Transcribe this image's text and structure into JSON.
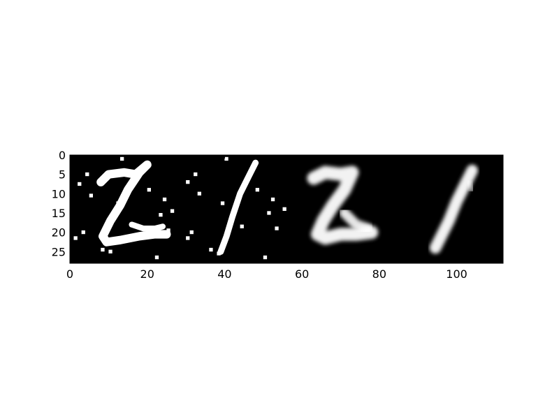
{
  "chart_data": {
    "type": "heatmap",
    "colormap": "gray",
    "background_color": "#000000",
    "foreground_color": "#ffffff",
    "xlim": [
      0,
      112
    ],
    "ylim": [
      28,
      0
    ],
    "xticks": [
      0,
      20,
      40,
      60,
      80,
      100
    ],
    "yticks": [
      0,
      5,
      10,
      15,
      20,
      25
    ],
    "xtick_labels": [
      "0",
      "20",
      "40",
      "60",
      "80",
      "100"
    ],
    "ytick_labels": [
      "0",
      "5",
      "10",
      "15",
      "20",
      "25"
    ],
    "grid": false,
    "panels": [
      {
        "name": "",
        "content": "noisy digit 2",
        "x_range": [
          0,
          28
        ]
      },
      {
        "name": "",
        "content": "noisy digit 1",
        "x_range": [
          28,
          56
        ]
      },
      {
        "name": "",
        "content": "denoised digit 2",
        "x_range": [
          56,
          84
        ]
      },
      {
        "name": "",
        "content": "denoised digit 1",
        "x_range": [
          84,
          112
        ]
      }
    ],
    "noise_points": [
      [
        1,
        21
      ],
      [
        2,
        7
      ],
      [
        4,
        4.5
      ],
      [
        5,
        10
      ],
      [
        3,
        19.5
      ],
      [
        13,
        0.5
      ],
      [
        12,
        12
      ],
      [
        16,
        17.5
      ],
      [
        20,
        8.5
      ],
      [
        24,
        11
      ],
      [
        26,
        14
      ],
      [
        23,
        15
      ],
      [
        25,
        19
      ],
      [
        8,
        24
      ],
      [
        10,
        24.5
      ],
      [
        22,
        26
      ],
      [
        30,
        21
      ],
      [
        31,
        19.5
      ],
      [
        30,
        6.5
      ],
      [
        32,
        4.5
      ],
      [
        33,
        9.5
      ],
      [
        40,
        0.5
      ],
      [
        39,
        12
      ],
      [
        44,
        18
      ],
      [
        48,
        8.5
      ],
      [
        52,
        11
      ],
      [
        55,
        13.5
      ],
      [
        51,
        14.5
      ],
      [
        53,
        18.5
      ],
      [
        36,
        24
      ],
      [
        38,
        25
      ],
      [
        50,
        26
      ]
    ],
    "strokes": [
      {
        "panel": "noisy-2",
        "width": 2.2,
        "opacity": 1,
        "blur": false,
        "points": [
          [
            8,
            7
          ],
          [
            10,
            5
          ],
          [
            14,
            4.5
          ],
          [
            17,
            5
          ],
          [
            20,
            2.5
          ],
          [
            18,
            4.5
          ],
          [
            15,
            9
          ],
          [
            13,
            13
          ],
          [
            10.5,
            17
          ],
          [
            8.5,
            21
          ],
          [
            9.5,
            22.5
          ],
          [
            13,
            22
          ],
          [
            18,
            21
          ],
          [
            22,
            20.5
          ],
          [
            25,
            20.5
          ]
        ]
      },
      {
        "panel": "noisy-2",
        "width": 1.5,
        "opacity": 1,
        "blur": false,
        "points": [
          [
            16,
            18
          ],
          [
            19,
            19
          ],
          [
            22,
            19
          ],
          [
            24,
            18.5
          ]
        ]
      },
      {
        "panel": "noisy-1",
        "width": 1.6,
        "opacity": 1,
        "blur": false,
        "points": [
          [
            48,
            2
          ],
          [
            46,
            6
          ],
          [
            44,
            10
          ],
          [
            42,
            16
          ],
          [
            40.5,
            21
          ],
          [
            39,
            25
          ]
        ]
      },
      {
        "panel": "denoised-2",
        "width": 3.4,
        "opacity": 0.95,
        "blur": true,
        "points": [
          [
            63,
            6
          ],
          [
            66,
            4.5
          ],
          [
            70,
            5
          ],
          [
            73,
            4.5
          ],
          [
            71,
            9
          ],
          [
            68,
            13
          ],
          [
            65.5,
            17
          ],
          [
            64,
            20.5
          ],
          [
            66,
            21.5
          ],
          [
            70,
            20.5
          ],
          [
            74,
            20.5
          ],
          [
            78,
            20
          ]
        ]
      },
      {
        "panel": "denoised-2",
        "width": 2.6,
        "opacity": 0.9,
        "blur": true,
        "points": [
          [
            71,
            15
          ],
          [
            74,
            18
          ],
          [
            77,
            19
          ]
        ]
      },
      {
        "panel": "denoised-1",
        "width": 3.0,
        "opacity": 0.95,
        "blur": true,
        "points": [
          [
            104,
            4
          ],
          [
            102,
            8
          ],
          [
            100,
            12
          ],
          [
            98,
            17
          ],
          [
            96,
            21
          ],
          [
            94.5,
            24
          ]
        ]
      },
      {
        "panel": "denoised-1",
        "width": 1.6,
        "opacity": 0.55,
        "blur": true,
        "points": [
          [
            103,
            7
          ],
          [
            104,
            9
          ]
        ]
      }
    ]
  }
}
